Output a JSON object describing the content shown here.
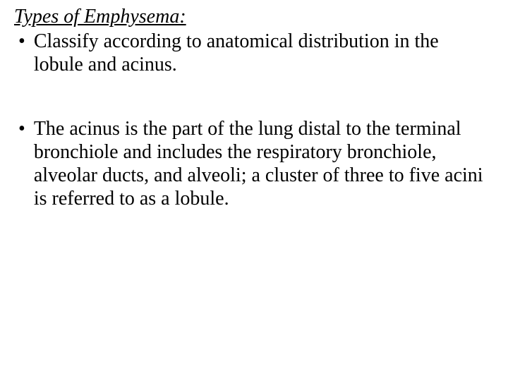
{
  "heading": "Types of Emphysema:",
  "bullets": [
    {
      "text": "Classify according to anatomical distribution in the lobule and acinus."
    },
    {
      "text": "The acinus is the part of the lung distal to the terminal bronchiole and includes the respiratory bronchiole, alveolar ducts, and alveoli; a cluster of three to five acini is referred to as a lobule."
    }
  ],
  "style": {
    "font_family": "Times New Roman",
    "heading_fontsize": 28,
    "body_fontsize": 28,
    "text_color": "#000000",
    "background_color": "#ffffff",
    "heading_italic": true,
    "heading_underline": true,
    "bullet_marker": "•"
  }
}
